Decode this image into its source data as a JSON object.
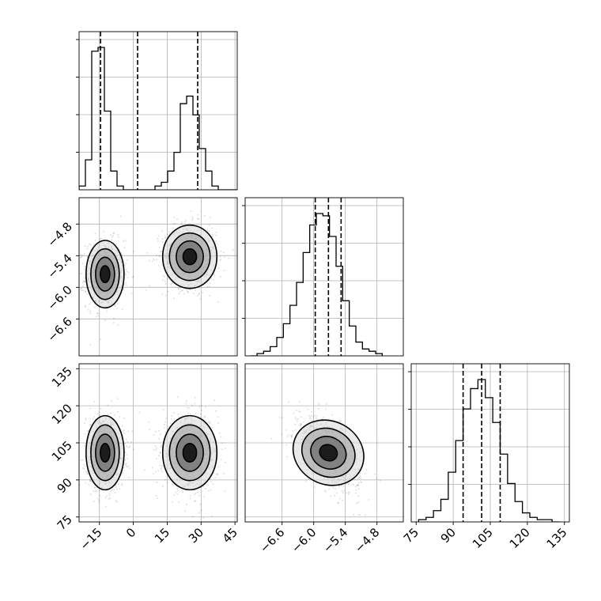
{
  "chart_data": [
    {
      "type": "histogram",
      "panel": "hist-x",
      "x_range": [
        -24,
        46
      ],
      "bins": [
        -24,
        -21.2,
        -18.4,
        -15.6,
        -12.8,
        -10,
        -7.2,
        -4.4,
        -1.6,
        1.2,
        4,
        6.8,
        9.6,
        12.4,
        15.2,
        18,
        20.8,
        23.6,
        26.4,
        29.2,
        32,
        34.8,
        37.6,
        40.4,
        43.2,
        46
      ],
      "counts": [
        1,
        8,
        37,
        38,
        21,
        5,
        1,
        0,
        0,
        0,
        0,
        0,
        1,
        2,
        5,
        10,
        23,
        25,
        20,
        11,
        5,
        1,
        0,
        0,
        0
      ],
      "quantiles": [
        -14.5,
        1.9,
        28.5
      ],
      "grid": true,
      "x_ticks_visible": false,
      "y_ticks_visible": false
    },
    {
      "type": "scatter+contour",
      "panel": "x-vs-y",
      "x_range": [
        -24,
        46
      ],
      "y_range": [
        -7.3,
        -4.3
      ],
      "y_ticks": [
        "−4.8",
        "−5.4",
        "−6.0",
        "−6.6"
      ],
      "y_tick_values": [
        -4.8,
        -5.4,
        -6.0,
        -6.6
      ],
      "clusters": [
        {
          "cx": -12.5,
          "cy": -5.75,
          "sx": 4.2,
          "sy": 0.32
        },
        {
          "cx": 25,
          "cy": -5.42,
          "sx": 6,
          "sy": 0.3
        }
      ],
      "grid": true
    },
    {
      "type": "histogram",
      "panel": "hist-y",
      "x_range": [
        -7.3,
        -4.3
      ],
      "bins": [
        -7.2,
        -7.075,
        -6.95,
        -6.825,
        -6.7,
        -6.575,
        -6.45,
        -6.325,
        -6.2,
        -6.075,
        -5.95,
        -5.825,
        -5.7,
        -5.575,
        -5.45,
        -5.325,
        -5.2,
        -5.075,
        -4.95,
        -4.825,
        -4.7
      ],
      "counts": [
        0,
        1,
        2,
        4,
        8,
        14,
        22,
        32,
        45,
        57,
        62,
        61,
        52,
        39,
        24,
        13,
        6,
        3,
        2,
        1
      ],
      "quantiles": [
        -5.97,
        -5.72,
        -5.48
      ],
      "grid": true,
      "x_ticks_visible": false,
      "y_ticks_visible": false
    },
    {
      "type": "scatter+contour",
      "panel": "x-vs-z",
      "x_range": [
        -24,
        46
      ],
      "y_range": [
        73,
        137
      ],
      "x_ticks": [
        "−15",
        "0",
        "15",
        "30",
        "45"
      ],
      "x_tick_values": [
        -15,
        0,
        15,
        30,
        45
      ],
      "y_ticks": [
        "135",
        "120",
        "105",
        "90",
        "75"
      ],
      "y_tick_values": [
        135,
        120,
        105,
        90,
        75
      ],
      "clusters": [
        {
          "cx": -12.5,
          "cy": 101,
          "sx": 4.2,
          "sy": 7.5
        },
        {
          "cx": 25,
          "cy": 101,
          "sx": 6,
          "sy": 7.5
        }
      ],
      "grid": true
    },
    {
      "type": "scatter+contour",
      "panel": "y-vs-z",
      "x_range": [
        -7.3,
        -4.3
      ],
      "y_range": [
        73,
        137
      ],
      "x_ticks": [
        "−6.6",
        "−6.0",
        "−5.4",
        "−4.8"
      ],
      "x_tick_values": [
        -6.6,
        -6.0,
        -5.4,
        -4.8
      ],
      "clusters": [
        {
          "cx": -5.72,
          "cy": 101,
          "sx": 0.3,
          "sy": 7.5,
          "rho": -0.55
        }
      ],
      "grid": true
    },
    {
      "type": "histogram",
      "panel": "hist-z",
      "x_range": [
        73,
        137
      ],
      "bins": [
        76,
        79,
        82,
        85,
        88,
        91,
        94,
        97,
        100,
        103,
        106,
        109,
        112,
        115,
        118,
        121,
        124,
        127,
        130,
        133
      ],
      "counts": [
        1,
        2,
        5,
        10,
        22,
        36,
        50,
        59,
        63,
        55,
        44,
        30,
        17,
        9,
        4,
        2,
        1,
        1,
        0
      ],
      "quantiles": [
        94,
        101.5,
        109
      ],
      "x_ticks": [
        "75",
        "90",
        "105",
        "120",
        "135"
      ],
      "x_tick_values": [
        75,
        90,
        105,
        120,
        135
      ],
      "grid": true,
      "y_ticks_visible": false
    }
  ]
}
